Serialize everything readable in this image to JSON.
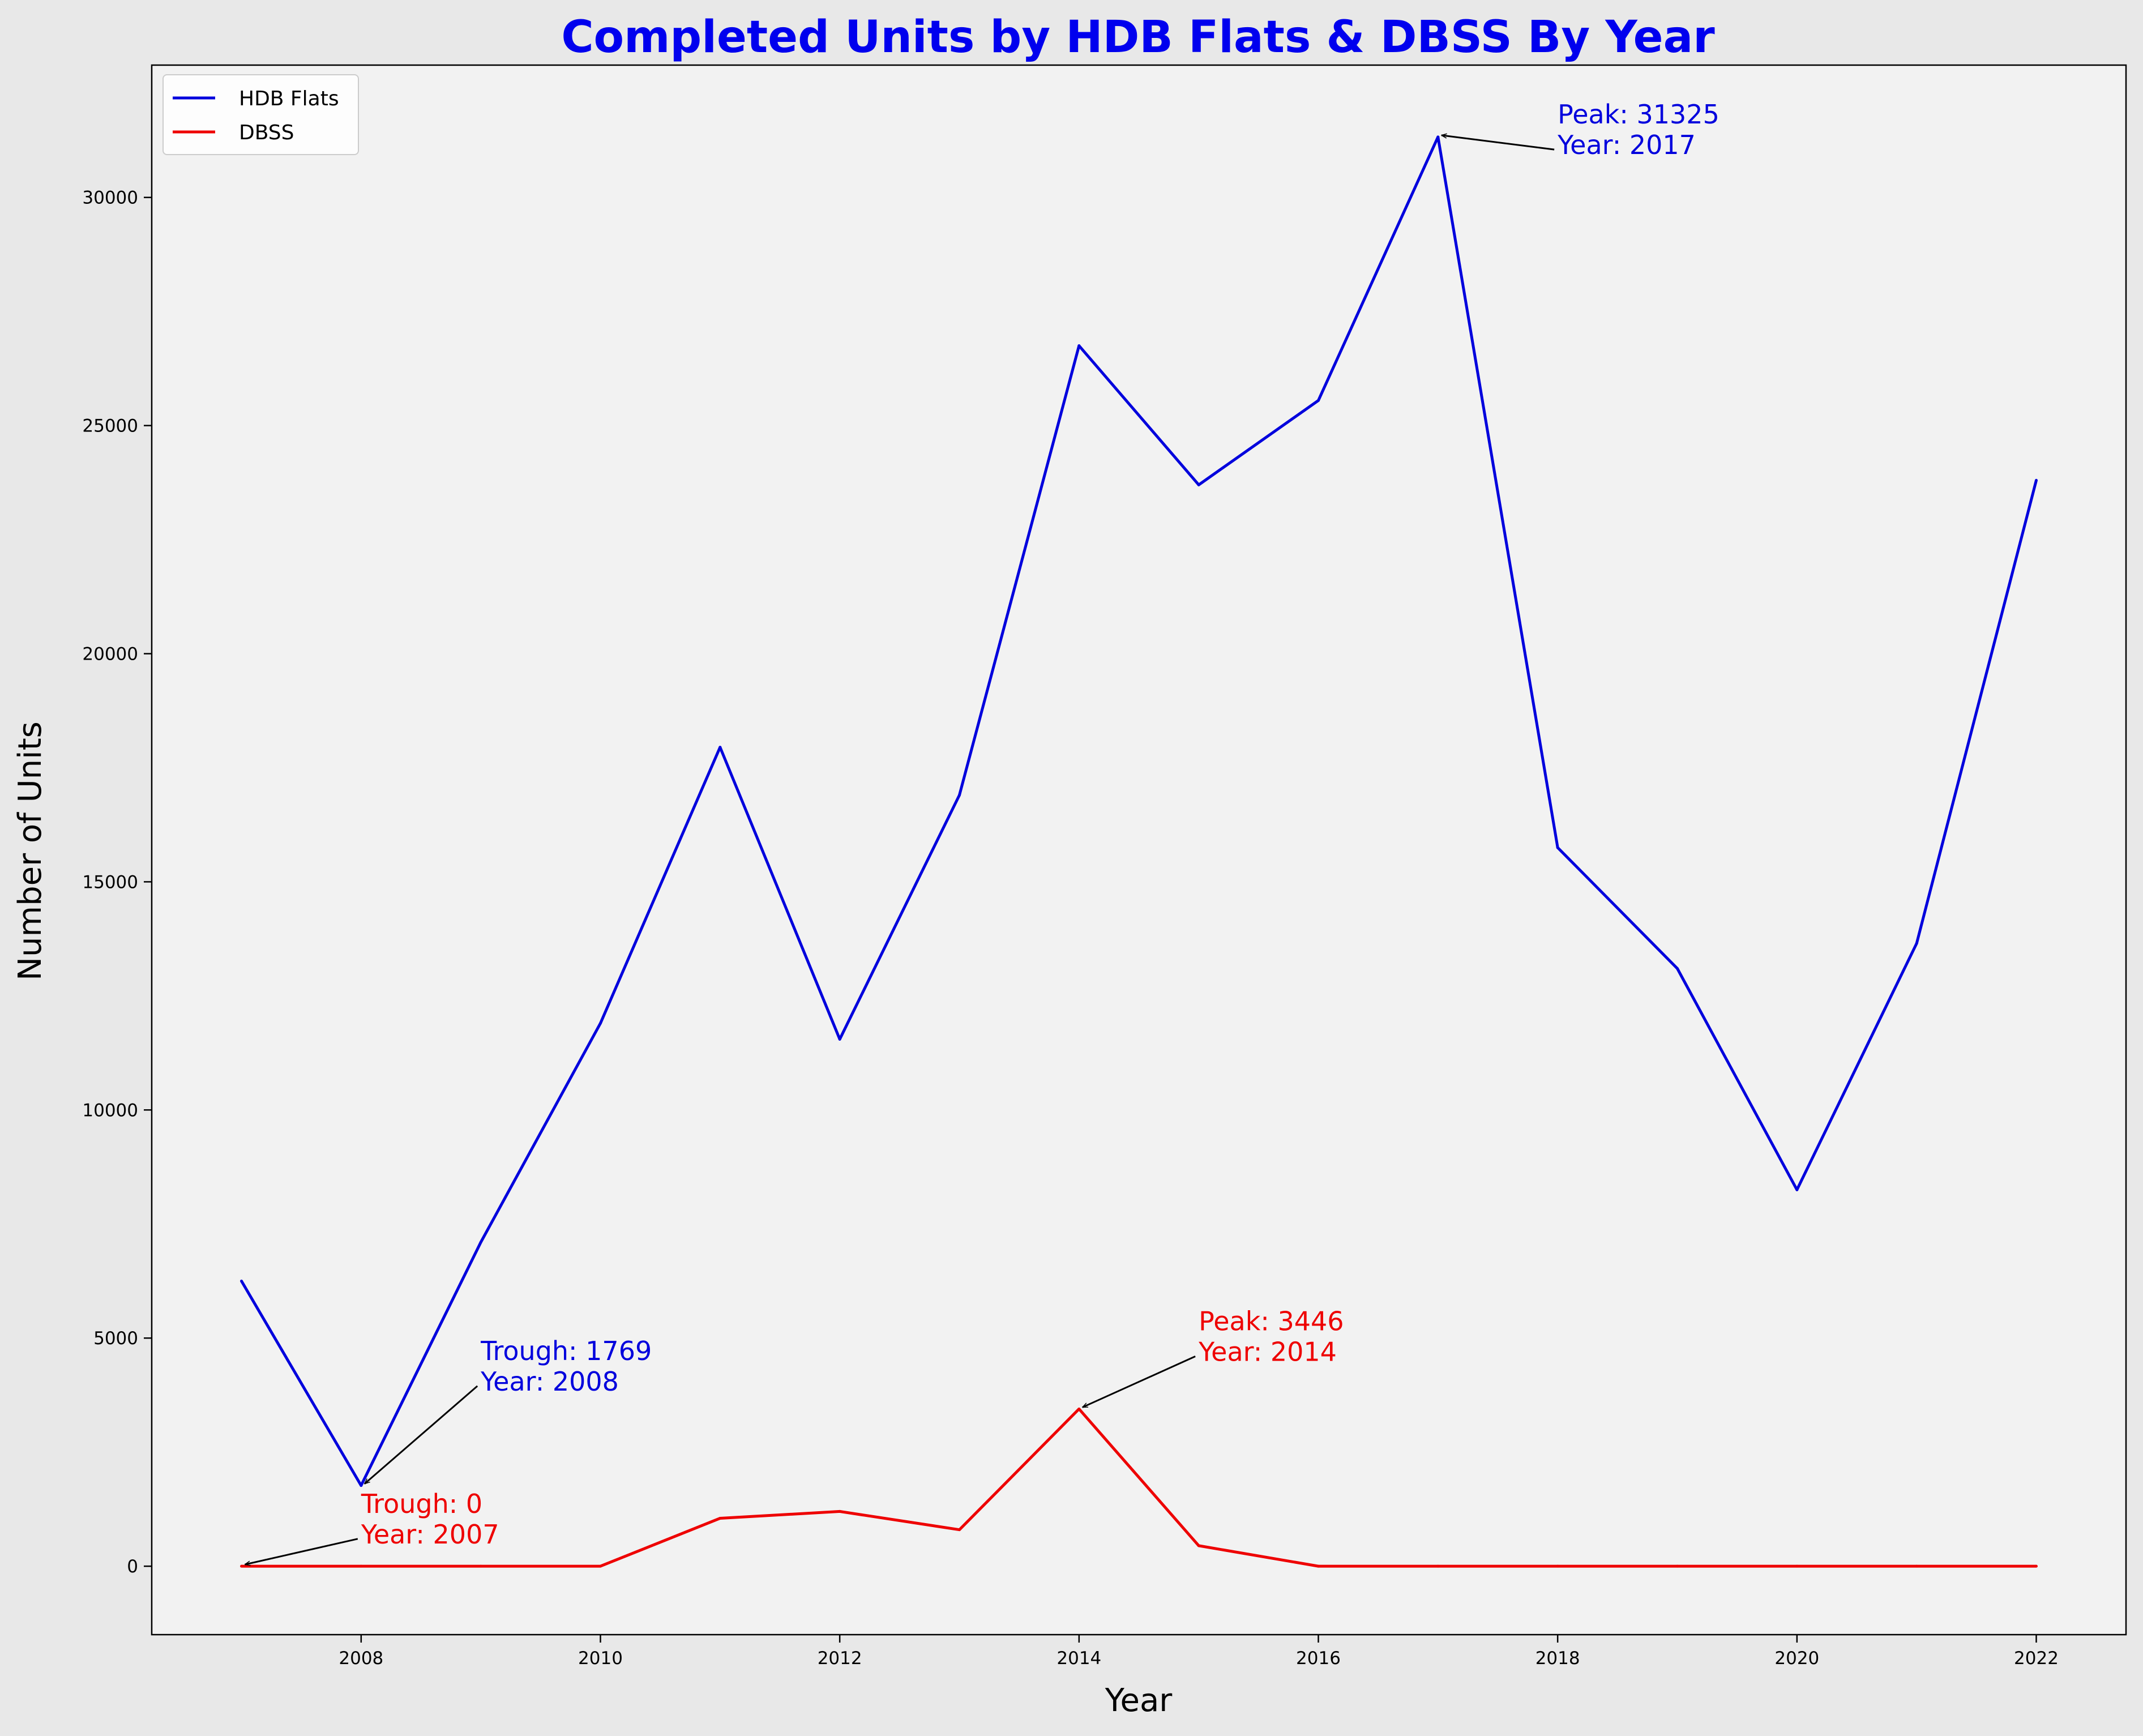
{
  "chart_data": {
    "type": "line",
    "title": "Completed Units by HDB Flats & DBSS By Year",
    "title_color": "#0000ee",
    "xlabel": "Year",
    "ylabel": "Number of Units",
    "xlim": [
      2006.25,
      2022.75
    ],
    "ylim": [
      -1500,
      32900
    ],
    "x_ticks": [
      2008,
      2010,
      2012,
      2014,
      2016,
      2018,
      2020,
      2022
    ],
    "y_ticks": [
      0,
      5000,
      10000,
      15000,
      20000,
      25000,
      30000
    ],
    "grid": false,
    "legend": {
      "placement": "top-left"
    },
    "x": [
      2007,
      2008,
      2009,
      2010,
      2011,
      2012,
      2013,
      2014,
      2015,
      2016,
      2017,
      2018,
      2019,
      2020,
      2021,
      2022
    ],
    "series": [
      {
        "name": "HDB Flats",
        "color": "#0000dd",
        "values": [
          6250,
          1769,
          7100,
          11900,
          17950,
          11550,
          16900,
          26750,
          23700,
          25550,
          31325,
          15750,
          13100,
          8250,
          13650,
          23800
        ]
      },
      {
        "name": "DBSS",
        "color": "#ee0000",
        "values": [
          0,
          0,
          0,
          0,
          1050,
          1200,
          800,
          3446,
          450,
          0,
          0,
          0,
          0,
          0,
          0,
          0
        ]
      }
    ],
    "annotations": [
      {
        "line1": "Peak: 31325",
        "line2": "Year: 2017",
        "x": 2017,
        "y": 31325,
        "text_x": 2018,
        "text_y": 30950,
        "color": "#0000dd"
      },
      {
        "line1": "Trough: 1769",
        "line2": "Year: 2008",
        "x": 2008,
        "y": 1769,
        "text_x": 2009,
        "text_y": 3850,
        "color": "#0000dd"
      },
      {
        "line1": "Peak: 3446",
        "line2": "Year: 2014",
        "x": 2014,
        "y": 3446,
        "text_x": 2015,
        "text_y": 4500,
        "color": "#ee0000"
      },
      {
        "line1": "Trough: 0",
        "line2": "Year: 2007",
        "x": 2007,
        "y": 0,
        "text_x": 2008,
        "text_y": 500,
        "color": "#ee0000"
      }
    ]
  }
}
